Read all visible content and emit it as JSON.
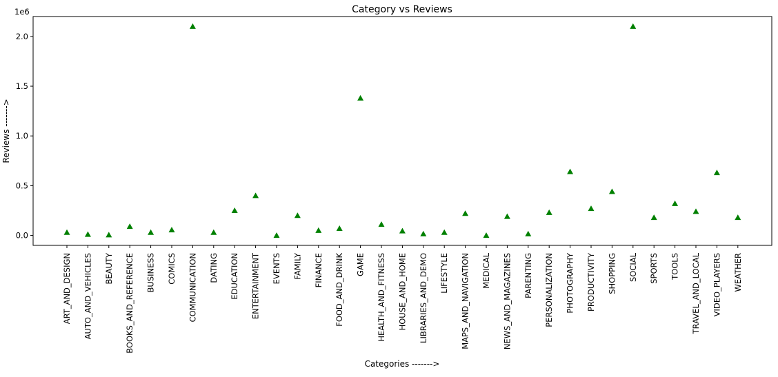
{
  "chart_data": {
    "type": "scatter",
    "title": "Category vs Reviews",
    "xlabel": "Categories ------->",
    "ylabel": "Reviews ------->",
    "y_scale_label": "1e6",
    "marker": "triangle",
    "marker_color": "#008000",
    "grid": false,
    "ylim": [
      -0.1,
      2.2
    ],
    "yticks": [
      0.0,
      0.5,
      1.0,
      1.5,
      2.0
    ],
    "ytick_labels": [
      "0.0",
      "0.5",
      "1.0",
      "1.5",
      "2.0"
    ],
    "categories": [
      "ART_AND_DESIGN",
      "AUTO_AND_VEHICLES",
      "BEAUTY",
      "BOOKS_AND_REFERENCE",
      "BUSINESS",
      "COMICS",
      "COMMUNICATION",
      "DATING",
      "EDUCATION",
      "ENTERTAINMENT",
      "EVENTS",
      "FAMILY",
      "FINANCE",
      "FOOD_AND_DRINK",
      "GAME",
      "HEALTH_AND_FITNESS",
      "HOUSE_AND_HOME",
      "LIBRARIES_AND_DEMO",
      "LIFESTYLE",
      "MAPS_AND_NAVIGATION",
      "MEDICAL",
      "NEWS_AND_MAGAZINES",
      "PARENTING",
      "PERSONALIZATION",
      "PHOTOGRAPHY",
      "PRODUCTIVITY",
      "SHOPPING",
      "SOCIAL",
      "SPORTS",
      "TOOLS",
      "TRAVEL_AND_LOCAL",
      "VIDEO_PLAYERS",
      "WEATHER"
    ],
    "values": [
      0.03,
      0.01,
      0.005,
      0.09,
      0.03,
      0.055,
      2.1,
      0.03,
      0.25,
      0.4,
      0.0,
      0.2,
      0.05,
      0.07,
      1.38,
      0.11,
      0.045,
      0.015,
      0.03,
      0.22,
      0.0,
      0.19,
      0.015,
      0.23,
      0.64,
      0.27,
      0.44,
      2.1,
      0.18,
      0.32,
      0.24,
      0.63,
      0.18
    ]
  }
}
